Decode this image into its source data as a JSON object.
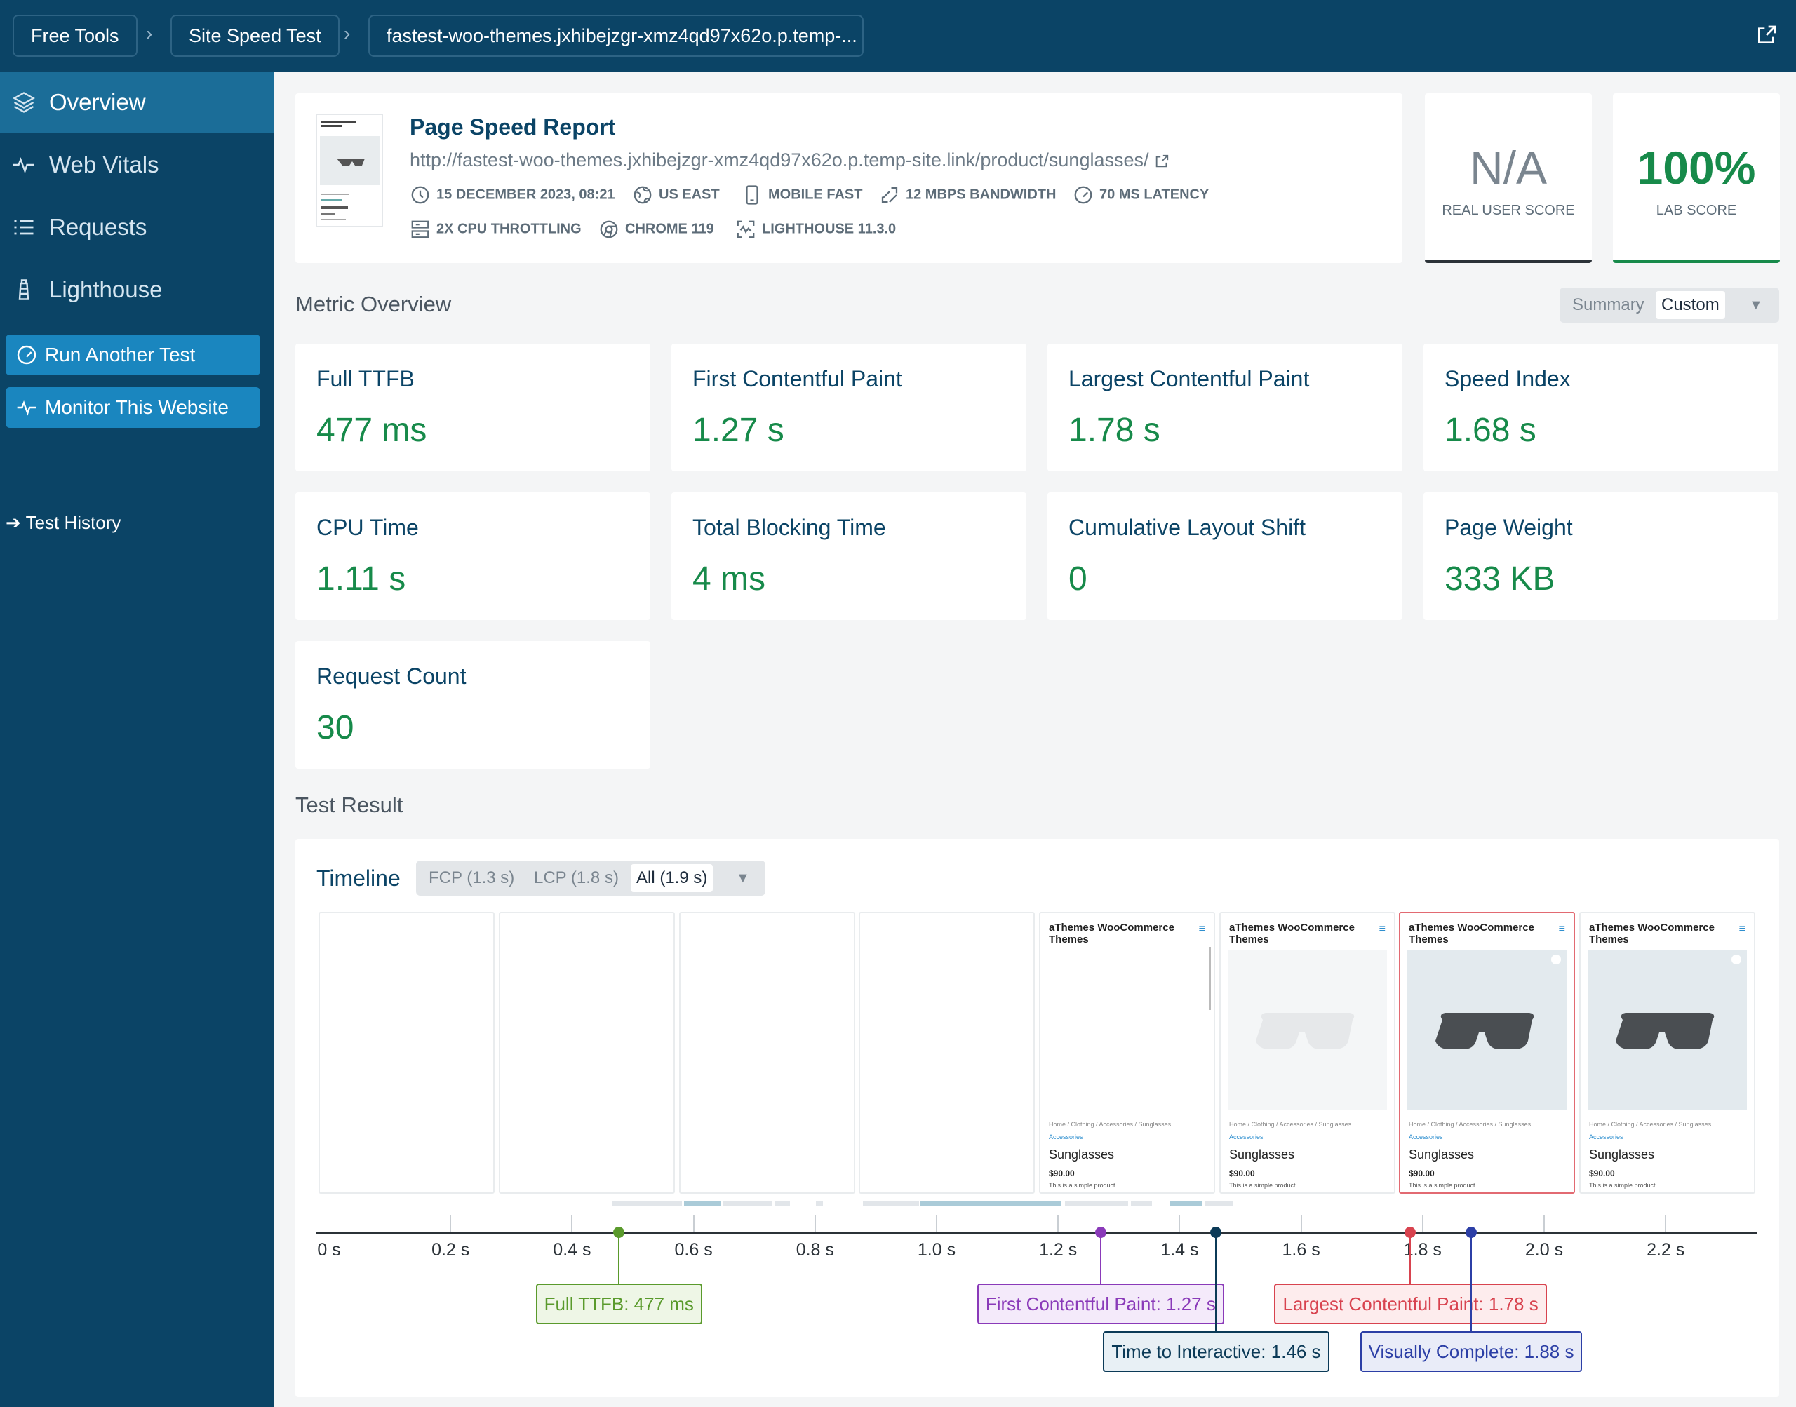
{
  "breadcrumb": [
    "Free Tools",
    "Site Speed Test",
    "fastest-woo-themes.jxhibejzgr-xmz4qd97x62o.p.temp-..."
  ],
  "sidebar": {
    "items": [
      {
        "label": "Overview",
        "icon": "layers-icon"
      },
      {
        "label": "Web Vitals",
        "icon": "pulse-icon"
      },
      {
        "label": "Requests",
        "icon": "list-icon"
      },
      {
        "label": "Lighthouse",
        "icon": "lighthouse-icon"
      }
    ],
    "run_test": "Run Another Test",
    "monitor": "Monitor This Website",
    "history": "Test History"
  },
  "report": {
    "title": "Page Speed Report",
    "url": "http://fastest-woo-themes.jxhibejzgr-xmz4qd97x62o.p.temp-site.link/product/sunglasses/",
    "date": "15 DECEMBER 2023, 08:21",
    "location": "US EAST",
    "device": "MOBILE FAST",
    "bandwidth": "12 MBPS BANDWIDTH",
    "latency": "70 MS LATENCY",
    "cpu": "2X CPU THROTTLING",
    "browser": "CHROME 119",
    "lighthouse": "LIGHTHOUSE 11.3.0"
  },
  "scores": {
    "real_user_value": "N/A",
    "real_user_label": "REAL USER SCORE",
    "lab_value": "100%",
    "lab_label": "LAB SCORE"
  },
  "metric_overview": {
    "title": "Metric Overview",
    "toggle": {
      "summary": "Summary",
      "custom": "Custom"
    },
    "metrics": [
      {
        "name": "Full TTFB",
        "value": "477 ms"
      },
      {
        "name": "First Contentful Paint",
        "value": "1.27 s"
      },
      {
        "name": "Largest Contentful Paint",
        "value": "1.78 s"
      },
      {
        "name": "Speed Index",
        "value": "1.68 s"
      },
      {
        "name": "CPU Time",
        "value": "1.11 s"
      },
      {
        "name": "Total Blocking Time",
        "value": "4 ms"
      },
      {
        "name": "Cumulative Layout Shift",
        "value": "0"
      },
      {
        "name": "Page Weight",
        "value": "333 KB"
      },
      {
        "name": "Request Count",
        "value": "30"
      }
    ]
  },
  "test_result": {
    "title": "Test Result",
    "timeline_title": "Timeline",
    "filters": {
      "fcp": "FCP (1.3 s)",
      "lcp": "LCP (1.8 s)",
      "all": "All (1.9 s)"
    },
    "frame_content": {
      "header": "aThemes WooCommerce Themes",
      "crumb": "Home / Clothing / Accessories / Sunglasses",
      "category": "Accessories",
      "product": "Sunglasses",
      "price": "$90.00",
      "desc": "This is a simple product."
    },
    "ticks": [
      "0 s",
      "0.2 s",
      "0.4 s",
      "0.6 s",
      "0.8 s",
      "1.0 s",
      "1.2 s",
      "1.4 s",
      "1.6 s",
      "1.8 s",
      "2.0 s",
      "2.2 s"
    ],
    "markers": [
      {
        "label": "Full TTFB: 477 ms",
        "time": 0.477,
        "color": "#5a9a2c"
      },
      {
        "label": "First Contentful Paint: 1.27 s",
        "time": 1.27,
        "color": "#8a3ab9"
      },
      {
        "label": "Time to Interactive: 1.46 s",
        "time": 1.46,
        "color": "#0b3a57"
      },
      {
        "label": "Largest Contentful Paint: 1.78 s",
        "time": 1.78,
        "color": "#d8434f"
      },
      {
        "label": "Visually Complete: 1.88 s",
        "time": 1.88,
        "color": "#2c3fa6"
      }
    ]
  }
}
